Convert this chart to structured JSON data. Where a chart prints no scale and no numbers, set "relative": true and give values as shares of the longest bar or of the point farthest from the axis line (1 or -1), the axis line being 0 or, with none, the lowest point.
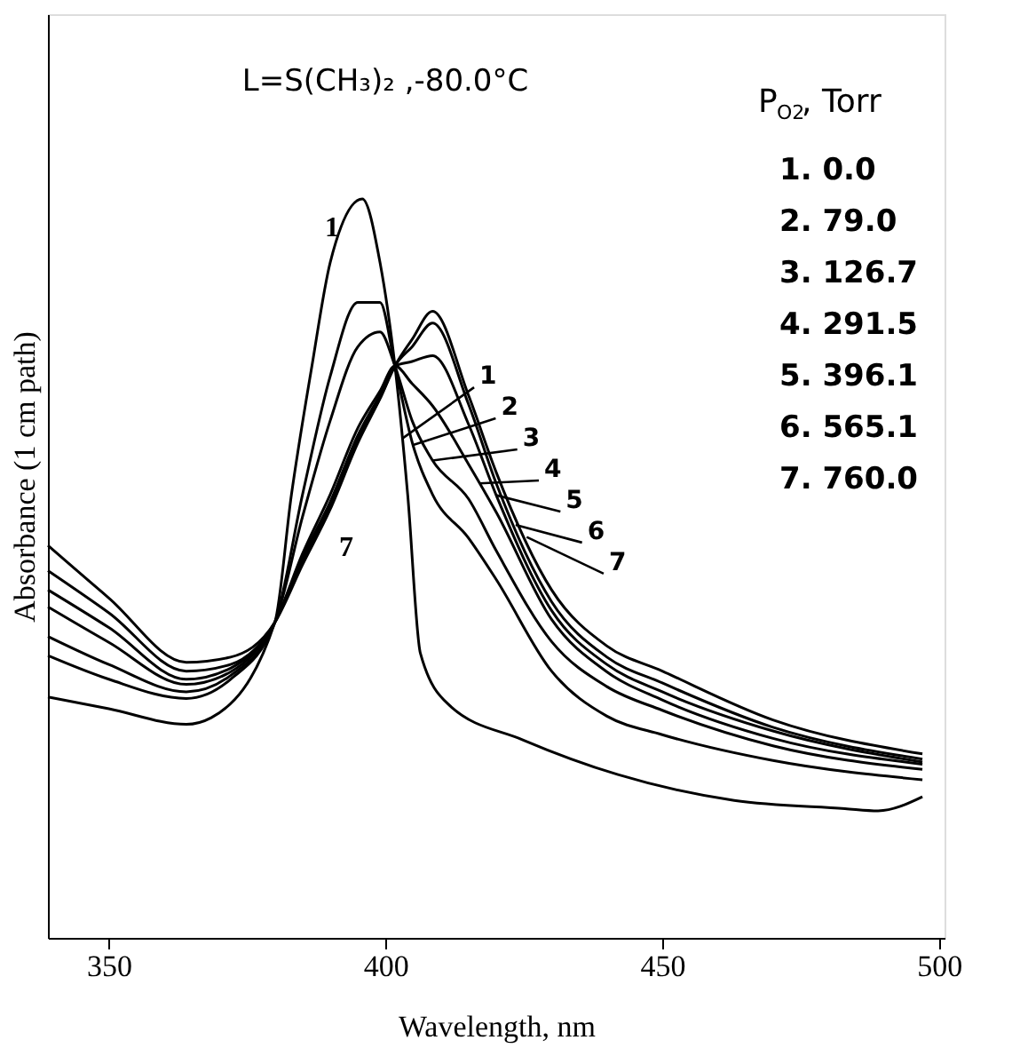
{
  "chart_data": {
    "type": "line",
    "title": "L=S(CH₃)₂ ,-80.0°C",
    "xlabel": "Wavelength, nm",
    "ylabel": "Absorbance (1 cm path)",
    "relative": true,
    "legend_title": "P$_{O2}$, Torr",
    "annotations": [
      "1.     0.0",
      "2.   79.0",
      "3. 126.7",
      "4. 291.5",
      "5. 396.1",
      "6. 565.1",
      "7. 760.0",
      "1",
      "7"
    ],
    "xlim": [
      339,
      501
    ],
    "xticks": [
      350,
      400,
      450,
      500
    ],
    "grid": false,
    "legend": "top right",
    "line_style": "solid",
    "marker": "none",
    "x": [
      339,
      350,
      364,
      372,
      380,
      385,
      390,
      395,
      399,
      401.7,
      404.8,
      408.5,
      415,
      420,
      430,
      440,
      450,
      470,
      497
    ],
    "series": [
      {
        "name": "1",
        "color": "#000000",
        "x": [
          339,
          350,
          364,
          368.5,
          380,
          383,
          386.7,
          390,
          395.8,
          399,
          401.7,
          404,
          406.3,
          411.5,
          424.8,
          442,
          463,
          483,
          489,
          497
        ],
        "values": [
          0.326,
          0.31,
          0.289,
          0.298,
          0.427,
          0.6,
          0.774,
          0.914,
          1.0,
          0.914,
          0.774,
          0.6,
          0.385,
          0.315,
          0.268,
          0.221,
          0.186,
          0.175,
          0.172,
          0.191
        ]
      },
      {
        "name": "2",
        "color": "#000000",
        "values": [
          0.382,
          0.35,
          0.324,
          0.35,
          0.427,
          0.6,
          0.76,
          0.86,
          0.86,
          0.774,
          0.671,
          0.6,
          0.541,
          0.485,
          0.361,
          0.3,
          0.275,
          0.24,
          0.214
        ]
      },
      {
        "name": "3",
        "color": "#000000",
        "values": [
          0.408,
          0.37,
          0.333,
          0.355,
          0.427,
          0.57,
          0.7,
          0.8,
          0.82,
          0.774,
          0.7,
          0.646,
          0.594,
          0.524,
          0.401,
          0.34,
          0.308,
          0.26,
          0.228
        ]
      },
      {
        "name": "4",
        "color": "#000000",
        "values": [
          0.448,
          0.4,
          0.343,
          0.36,
          0.427,
          0.52,
          0.6,
          0.69,
          0.74,
          0.774,
          0.75,
          0.72,
          0.641,
          0.576,
          0.431,
          0.36,
          0.322,
          0.27,
          0.235
        ]
      },
      {
        "name": "5",
        "color": "#000000",
        "values": [
          0.471,
          0.42,
          0.35,
          0.365,
          0.427,
          0.515,
          0.59,
          0.68,
          0.735,
          0.774,
          0.78,
          0.788,
          0.695,
          0.599,
          0.443,
          0.37,
          0.333,
          0.28,
          0.238
        ]
      },
      {
        "name": "6",
        "color": "#000000",
        "values": [
          0.497,
          0.44,
          0.361,
          0.37,
          0.427,
          0.51,
          0.585,
          0.675,
          0.73,
          0.774,
          0.8,
          0.832,
          0.722,
          0.615,
          0.455,
          0.38,
          0.345,
          0.285,
          0.242
        ]
      },
      {
        "name": "7",
        "color": "#000000",
        "values": [
          0.531,
          0.46,
          0.373,
          0.38,
          0.427,
          0.505,
          0.58,
          0.67,
          0.73,
          0.774,
          0.81,
          0.848,
          0.734,
          0.63,
          0.471,
          0.395,
          0.361,
          0.295,
          0.249
        ]
      }
    ]
  }
}
